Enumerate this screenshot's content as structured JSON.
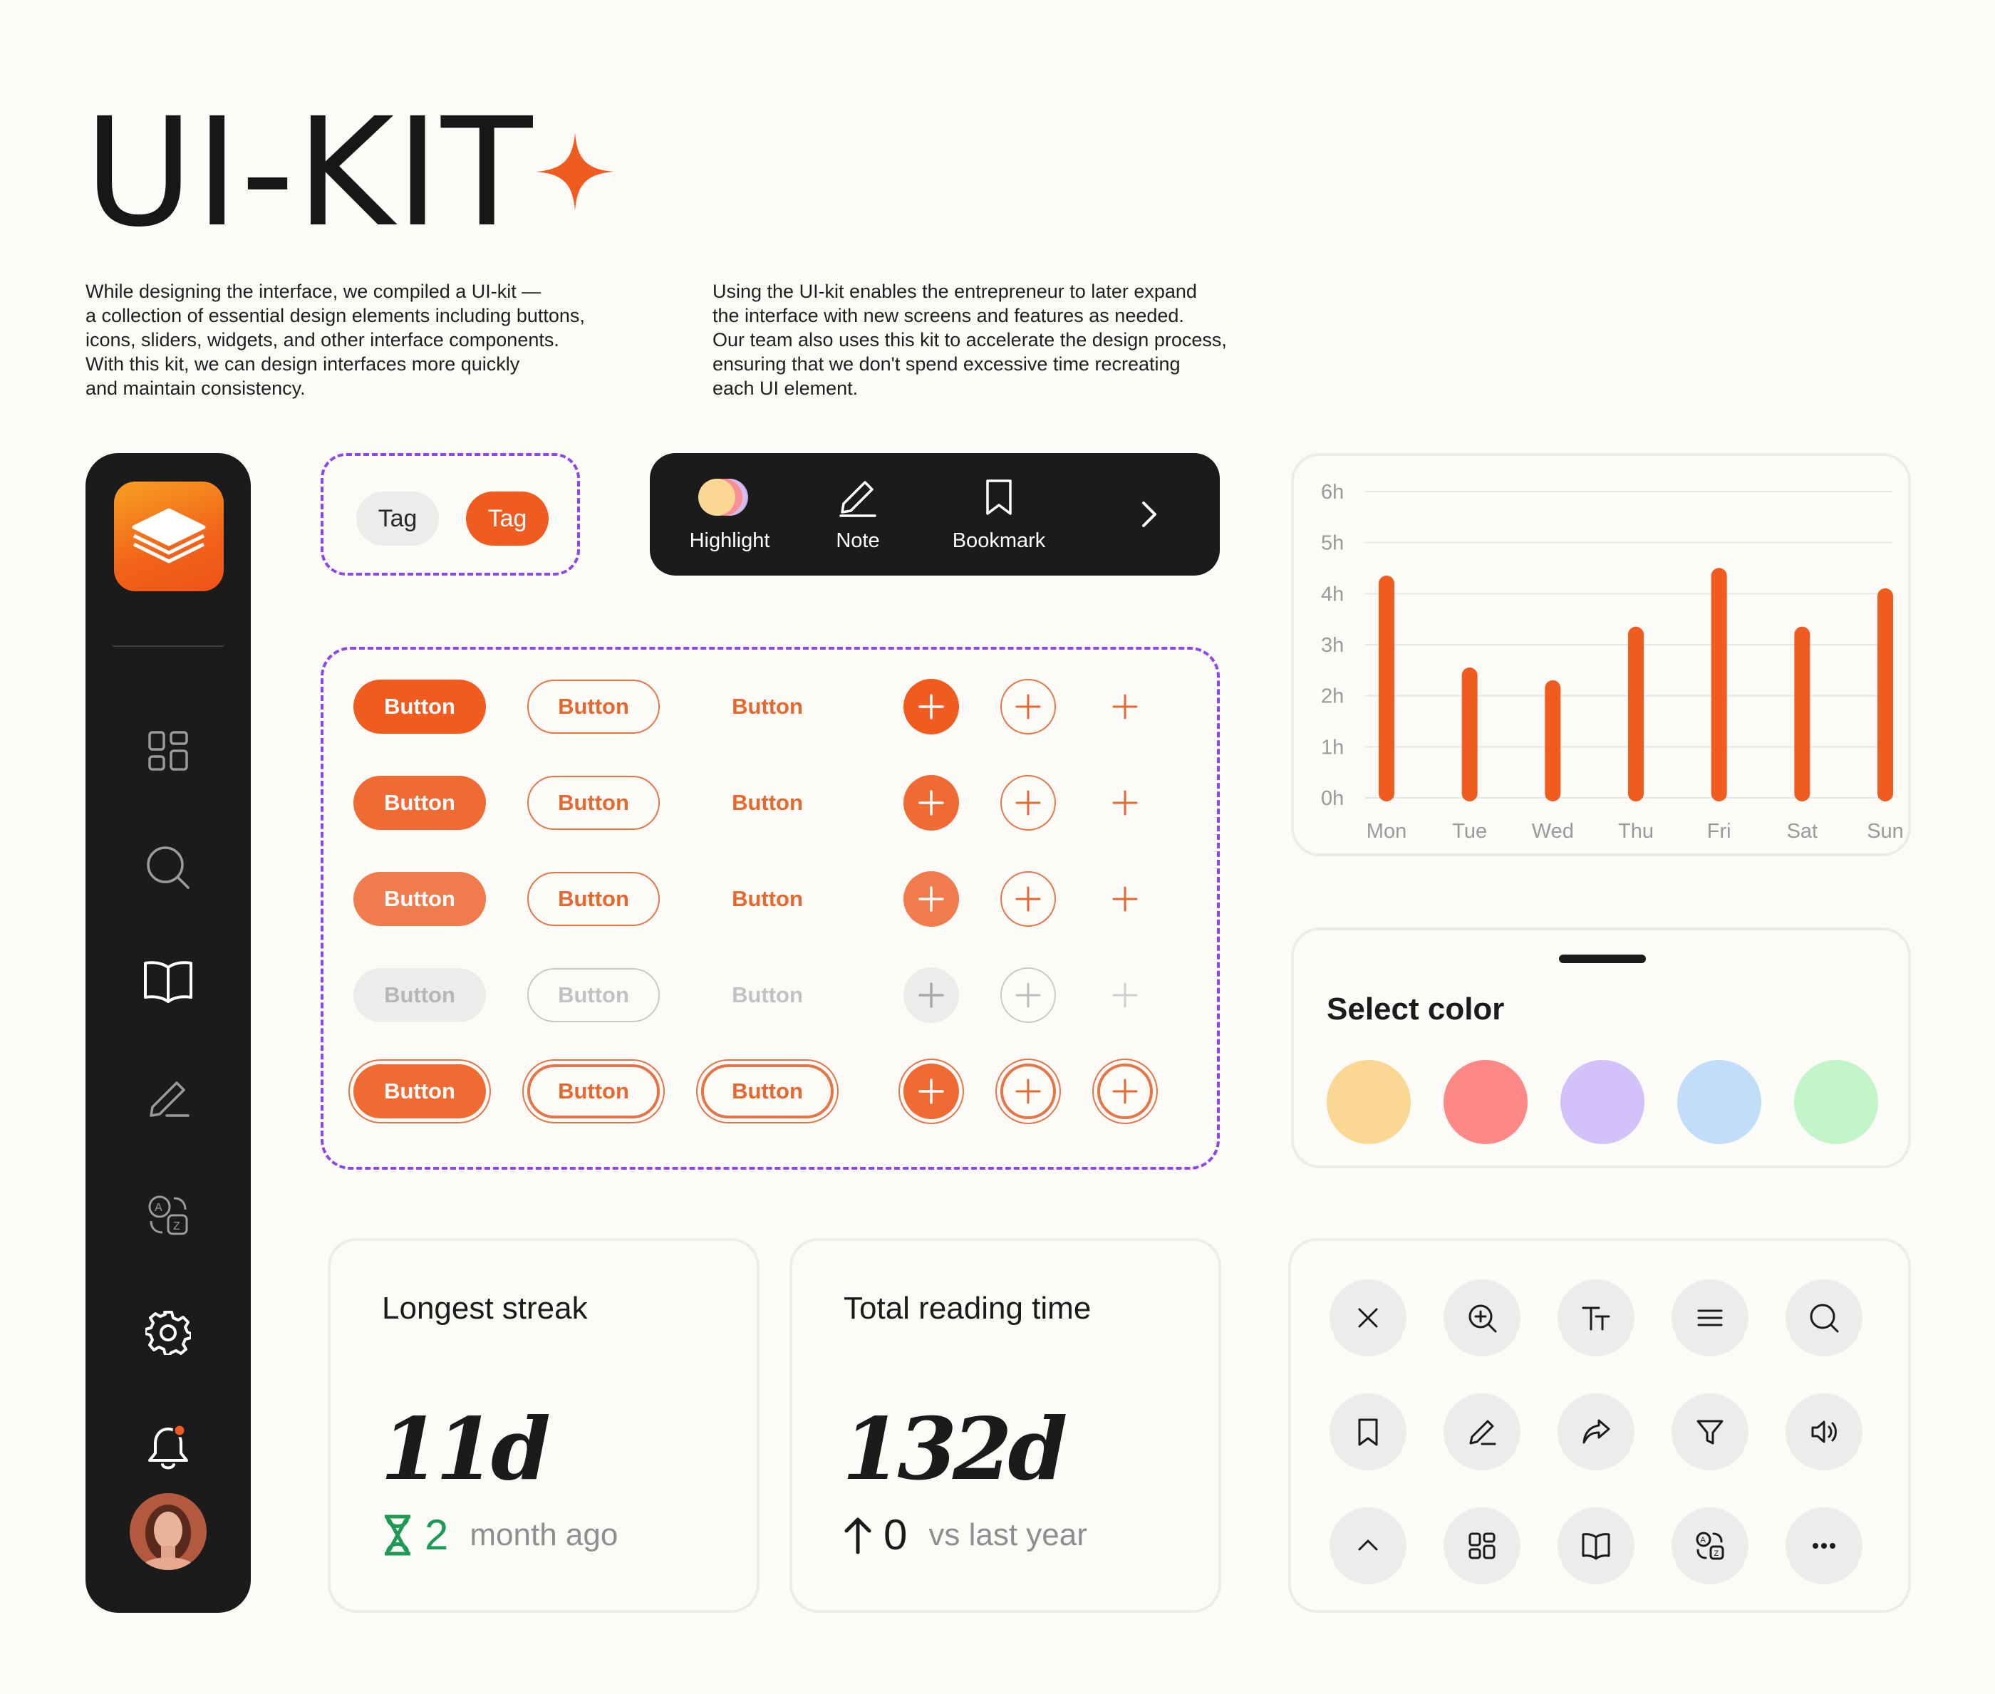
{
  "header": {
    "title": "UI-KIT",
    "intro_left": "While designing the interface, we compiled a UI-kit —\na collection of essential design elements including buttons,\nicons, sliders, widgets, and other interface components.\nWith this kit, we can design interfaces more quickly\nand maintain consistency.",
    "intro_right": "Using the UI-kit enables the entrepreneur to later expand\nthe interface with new screens and features as needed.\nOur team also uses this kit to accelerate the design process,\nensuring that we don't spend excessive time recreating\neach UI element."
  },
  "colors": {
    "accent": "#f05b1f",
    "dark": "#1b1b1b",
    "dashed": "#8c47eb",
    "muted": "#9a9a9a"
  },
  "sidebar": {
    "icons": [
      "grid-icon",
      "search-icon",
      "book-icon",
      "pen-icon",
      "translate-icon",
      "gear-icon",
      "bell-icon"
    ],
    "notification_dot": true
  },
  "tags": [
    "Tag",
    "Tag"
  ],
  "toolbar": {
    "highlight": "Highlight",
    "note": "Note",
    "bookmark": "Bookmark"
  },
  "buttons": {
    "label": "Button",
    "rows": [
      {
        "state": "default",
        "fill": "#f05b1f"
      },
      {
        "state": "hover",
        "fill": "#f06a34"
      },
      {
        "state": "pressed",
        "fill": "#f07b4d"
      },
      {
        "state": "disabled",
        "fill": "#ececea"
      },
      {
        "state": "focused",
        "fill": "#f06a34"
      }
    ]
  },
  "chart_data": {
    "type": "bar",
    "categories": [
      "Mon",
      "Tue",
      "Wed",
      "Thu",
      "Fri",
      "Sat",
      "Sun"
    ],
    "values": [
      4.2,
      2.4,
      2.15,
      3.2,
      4.35,
      3.2,
      3.95
    ],
    "yticks": [
      "6h",
      "5h",
      "4h",
      "3h",
      "2h",
      "1h",
      "0h"
    ],
    "ylim": [
      0,
      6
    ],
    "grid": true,
    "bar_color": "#f05b1f"
  },
  "color_picker": {
    "title": "Select color",
    "swatches": [
      "#fad793",
      "#fd8885",
      "#d3c1f9",
      "#c1ddfa",
      "#c2f6c9"
    ]
  },
  "stats": {
    "streak": {
      "title": "Longest streak",
      "value": "11d",
      "num": "2",
      "sub": "month ago"
    },
    "reading": {
      "title": "Total reading time",
      "value": "132d",
      "num": "0",
      "sub": "vs last year"
    }
  },
  "icon_grid": {
    "icons": [
      "close-icon",
      "zoom-in-icon",
      "text-size-icon",
      "menu-icon",
      "search-icon",
      "bookmark-icon",
      "pen-icon",
      "share-icon",
      "filter-icon",
      "volume-icon",
      "chevron-up-icon",
      "grid-icon",
      "book-icon",
      "translate-icon",
      "more-icon"
    ]
  }
}
